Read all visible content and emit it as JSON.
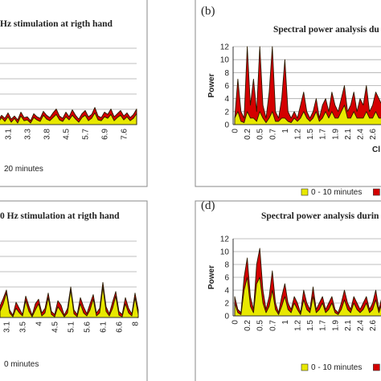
{
  "chart_data": [
    {
      "type": "area",
      "title": "Hz stimulation at rigth hand",
      "categories": [
        null,
        null,
        null,
        "3.1",
        null,
        null,
        null,
        null,
        null,
        "3.3",
        null,
        null,
        null,
        null,
        null,
        "3.8",
        null,
        null,
        null,
        null,
        null,
        "4.5",
        null,
        null,
        null,
        null,
        null,
        "5.7",
        null,
        null,
        null,
        null,
        null,
        "6.9",
        null,
        null,
        null,
        null,
        null,
        "7.6",
        null,
        null,
        null,
        null
      ],
      "ylim": [
        0,
        10
      ],
      "series": [
        {
          "name": "20 minutes",
          "color": "#d40000",
          "values": [
            0.6,
            1.2,
            0.8,
            1.5,
            0.7,
            1.1,
            0.6,
            1.6,
            0.9,
            1.0,
            0.5,
            1.4,
            1.0,
            0.8,
            1.7,
            1.2,
            0.9,
            1.5,
            2.0,
            1.1,
            0.8,
            1.6,
            1.0,
            1.9,
            1.2,
            0.7,
            1.4,
            1.8,
            1.0,
            1.3,
            2.2,
            1.1,
            0.9,
            1.6,
            1.3,
            2.0,
            1.0,
            1.4,
            1.8,
            1.1,
            1.5,
            0.9,
            1.3,
            2.0
          ]
        },
        {
          "color": "#e8e800",
          "values": [
            0.3,
            0.9,
            0.4,
            1.0,
            0.3,
            0.8,
            0.2,
            1.1,
            0.5,
            0.6,
            0.2,
            0.9,
            0.6,
            0.4,
            1.2,
            0.7,
            0.5,
            0.9,
            1.3,
            0.6,
            0.4,
            1.0,
            0.6,
            1.2,
            0.7,
            0.3,
            0.9,
            1.2,
            0.5,
            0.8,
            1.5,
            0.6,
            0.5,
            1.0,
            0.8,
            1.3,
            0.5,
            0.9,
            1.2,
            0.6,
            1.0,
            0.5,
            0.8,
            1.4
          ]
        }
      ]
    },
    {
      "type": "area",
      "label": "(b)",
      "title": "Spectral power analysis du",
      "y_label": "Power",
      "x_label": "Cl",
      "categories": [
        "0",
        null,
        null,
        null,
        "0.2",
        null,
        null,
        null,
        "0.5",
        null,
        null,
        null,
        "0.7",
        null,
        null,
        null,
        "1",
        null,
        null,
        null,
        "1.2",
        null,
        null,
        null,
        "1.5",
        null,
        null,
        null,
        "1.7",
        null,
        null,
        null,
        "1.9",
        null,
        null,
        null,
        "2.1",
        null,
        null,
        null,
        "2.4",
        null,
        null,
        null,
        "2.6",
        null,
        null,
        null
      ],
      "ylim": [
        0,
        12
      ],
      "yticks": [
        0,
        2,
        4,
        6,
        8,
        10,
        12
      ],
      "grid": true,
      "series": [
        {
          "color": "#d40000",
          "values": [
            1,
            7,
            2,
            1,
            12,
            3,
            7,
            2,
            12,
            3,
            1,
            5,
            12,
            2,
            1,
            4,
            10,
            2,
            1,
            2,
            1,
            3,
            5,
            2,
            1,
            2,
            4,
            1,
            3,
            4,
            2,
            5,
            3,
            2,
            4,
            6,
            2,
            3,
            5,
            2,
            4,
            3,
            6,
            2,
            3,
            5,
            4,
            3
          ]
        },
        {
          "name": "0 - 10 minutes",
          "color": "#e8e800",
          "values": [
            1,
            2,
            0.5,
            0.3,
            2,
            1,
            1,
            0.5,
            2,
            1,
            0.3,
            1,
            2,
            0.5,
            0.5,
            1,
            1,
            0.5,
            0.3,
            1,
            0.5,
            1,
            2,
            1,
            0.5,
            1,
            2,
            0.5,
            1,
            2,
            1,
            2,
            1,
            1,
            2,
            3,
            1,
            1,
            2,
            1,
            1,
            1,
            2,
            1,
            1,
            2,
            1,
            1
          ]
        }
      ]
    },
    {
      "type": "area",
      "title": "0 Hz stimulation at rigth hand",
      "categories": [
        null,
        null,
        "3.1",
        null,
        null,
        null,
        null,
        "3.5",
        null,
        null,
        null,
        null,
        "4",
        null,
        null,
        null,
        null,
        "4.5",
        null,
        null,
        null,
        null,
        "5.1",
        null,
        null,
        null,
        null,
        "5.6",
        null,
        null,
        null,
        null,
        "6.1",
        null,
        null,
        null,
        null,
        "6.6",
        null,
        null,
        null,
        null,
        "8",
        null
      ],
      "ylim": [
        0,
        10
      ],
      "series": [
        {
          "name": "0 minutes",
          "color": "#d40000",
          "values": [
            1.5,
            2.5,
            3.6,
            1.0,
            0.3,
            2.0,
            1.2,
            0.4,
            2.8,
            1.5,
            0.3,
            1.8,
            2.4,
            0.6,
            1.2,
            3.2,
            0.8,
            0.4,
            2.2,
            1.6,
            0.3,
            1.2,
            4.0,
            1.0,
            0.4,
            2.6,
            1.4,
            0.5,
            1.8,
            3.0,
            0.6,
            1.2,
            4.6,
            1.4,
            0.5,
            2.0,
            3.4,
            0.8,
            0.4,
            2.6,
            1.2,
            0.5,
            3.2,
            1.0
          ]
        },
        {
          "color": "#e8e800",
          "values": [
            0.8,
            1.8,
            3.2,
            0.6,
            0.1,
            1.2,
            0.6,
            0.2,
            2.2,
            0.8,
            0.1,
            1.0,
            1.8,
            0.2,
            0.6,
            2.6,
            0.4,
            0.1,
            1.4,
            0.8,
            0.1,
            0.6,
            3.6,
            0.5,
            0.1,
            1.8,
            0.6,
            0.2,
            1.0,
            2.4,
            0.2,
            0.6,
            4.0,
            0.8,
            0.2,
            1.2,
            2.8,
            0.3,
            0.1,
            1.8,
            0.6,
            0.2,
            2.6,
            0.4
          ]
        }
      ]
    },
    {
      "type": "area",
      "label": "(d)",
      "title": "Spectral power analysis durin",
      "y_label": "Power",
      "categories": [
        "0",
        null,
        null,
        null,
        "0.2",
        null,
        null,
        null,
        "0.5",
        null,
        null,
        null,
        "0.7",
        null,
        null,
        null,
        "1",
        null,
        null,
        null,
        "1.2",
        null,
        null,
        null,
        "1.5",
        null,
        null,
        null,
        "1.7",
        null,
        null,
        null,
        "1.9",
        null,
        null,
        null,
        "2.1",
        null,
        null,
        null,
        "2.4",
        null,
        null,
        null,
        "2.6",
        null,
        null,
        null
      ],
      "ylim": [
        0,
        12
      ],
      "yticks": [
        0,
        2,
        4,
        6,
        8,
        10,
        12
      ],
      "grid": true,
      "series": [
        {
          "color": "#d40000",
          "values": [
            3,
            1,
            0.5,
            6,
            9,
            3,
            1,
            8,
            10.5,
            4,
            1,
            3,
            7,
            2,
            0.5,
            3,
            5,
            2,
            1,
            3,
            2,
            0.5,
            4,
            2,
            1,
            4.5,
            1,
            2,
            3,
            1,
            2,
            3,
            1,
            0.5,
            2,
            4,
            2,
            1,
            3,
            2,
            1,
            2,
            3,
            1,
            2,
            4,
            1,
            3
          ]
        },
        {
          "name": "0 - 10 minutes",
          "color": "#e8e800",
          "values": [
            2,
            0.5,
            0.2,
            4,
            6,
            1.5,
            0.5,
            5,
            6,
            2,
            0.5,
            1.5,
            4,
            1,
            0.2,
            1.5,
            3,
            1,
            0.5,
            2,
            1,
            0.2,
            2.5,
            1,
            0.5,
            3,
            0.5,
            1,
            2,
            0.5,
            1,
            2,
            0.5,
            0.2,
            1,
            2.5,
            1,
            0.5,
            2,
            1,
            0.5,
            1,
            2,
            0.5,
            1,
            2.5,
            0.5,
            2
          ]
        }
      ]
    }
  ]
}
